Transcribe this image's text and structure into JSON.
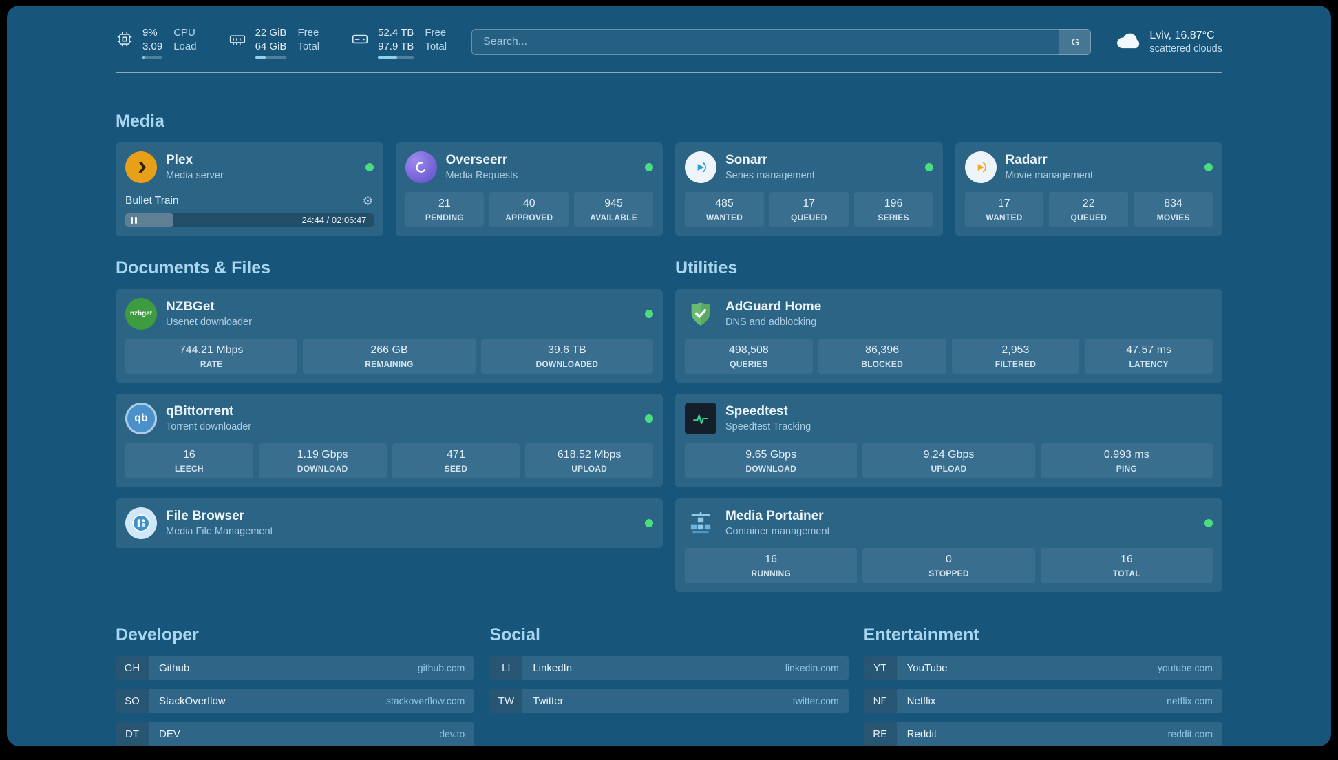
{
  "colors": {
    "page_background": "#18557B",
    "section_heading": "#A9D6EF",
    "status_online": "#4ADE80",
    "bookmark_domain": "#8FC6E6",
    "plex_brand": "#E8A018",
    "overseerr_brand": "#5F4BC8",
    "sonarr_brand": "#2E9BD6",
    "radarr_brand": "#F5A623",
    "nzbget_brand": "#3D9C40",
    "qbittorrent_brand": "#4A90C9",
    "adguard_brand": "#68BC71",
    "speedtest_brand": "#34D399",
    "portainer_brand": "#7FC3E8"
  },
  "header": {
    "cpu": {
      "icon": "cpu-icon",
      "value": "9%",
      "value2": "3.09",
      "label": "CPU",
      "label2": "Load",
      "bar_percent": 9
    },
    "memory": {
      "icon": "memory-icon",
      "value": "22 GiB",
      "value2": "64 GiB",
      "label": "Free",
      "label2": "Total",
      "bar_percent": 34
    },
    "disk": {
      "icon": "disk-icon",
      "value": "52.4 TB",
      "value2": "97.9 TB",
      "label": "Free",
      "label2": "Total",
      "bar_percent": 54
    },
    "search": {
      "placeholder": "Search...",
      "button_label": "G"
    },
    "weather": {
      "icon": "cloud-icon",
      "location": "Lviv, 16.87°C",
      "condition": "scattered clouds"
    }
  },
  "media": {
    "title": "Media",
    "plex": {
      "name": "Plex",
      "subtitle": "Media server",
      "icon": "plex-icon",
      "online": true,
      "now_playing": {
        "title": "Bullet Train",
        "time_display": "24:44 / 02:06:47",
        "progress_percent": 19.5
      },
      "gear_glyph": "⚙"
    },
    "overseerr": {
      "name": "Overseerr",
      "subtitle": "Media Requests",
      "icon": "overseerr-icon",
      "online": true,
      "stats": [
        {
          "value": "21",
          "label": "PENDING"
        },
        {
          "value": "40",
          "label": "APPROVED"
        },
        {
          "value": "945",
          "label": "AVAILABLE"
        }
      ]
    },
    "sonarr": {
      "name": "Sonarr",
      "subtitle": "Series management",
      "icon": "sonarr-icon",
      "online": true,
      "stats": [
        {
          "value": "485",
          "label": "WANTED"
        },
        {
          "value": "17",
          "label": "QUEUED"
        },
        {
          "value": "196",
          "label": "SERIES"
        }
      ]
    },
    "radarr": {
      "name": "Radarr",
      "subtitle": "Movie management",
      "icon": "radarr-icon",
      "online": true,
      "stats": [
        {
          "value": "17",
          "label": "WANTED"
        },
        {
          "value": "22",
          "label": "QUEUED"
        },
        {
          "value": "834",
          "label": "MOVIES"
        }
      ]
    }
  },
  "documents": {
    "title": "Documents & Files",
    "nzbget": {
      "name": "NZBGet",
      "subtitle": "Usenet downloader",
      "icon": "nzbget-icon",
      "icon_text": "nzbget",
      "online": true,
      "stats": [
        {
          "value": "744.21 Mbps",
          "label": "RATE"
        },
        {
          "value": "266 GB",
          "label": "REMAINING"
        },
        {
          "value": "39.6 TB",
          "label": "DOWNLOADED"
        }
      ]
    },
    "qbittorrent": {
      "name": "qBittorrent",
      "subtitle": "Torrent downloader",
      "icon": "qbittorrent-icon",
      "icon_text": "qb",
      "online": true,
      "stats": [
        {
          "value": "16",
          "label": "LEECH"
        },
        {
          "value": "1.19 Gbps",
          "label": "DOWNLOAD"
        },
        {
          "value": "471",
          "label": "SEED"
        },
        {
          "value": "618.52 Mbps",
          "label": "UPLOAD"
        }
      ]
    },
    "filebrowser": {
      "name": "File Browser",
      "subtitle": "Media File Management",
      "icon": "filebrowser-icon",
      "online": true
    }
  },
  "utilities": {
    "title": "Utilities",
    "adguard": {
      "name": "AdGuard Home",
      "subtitle": "DNS and adblocking",
      "icon": "adguard-shield-icon",
      "stats": [
        {
          "value": "498,508",
          "label": "QUERIES"
        },
        {
          "value": "86,396",
          "label": "BLOCKED"
        },
        {
          "value": "2,953",
          "label": "FILTERED"
        },
        {
          "value": "47.57 ms",
          "label": "LATENCY"
        }
      ]
    },
    "speedtest": {
      "name": "Speedtest",
      "subtitle": "Speedtest Tracking",
      "icon": "speedtest-pulse-icon",
      "stats": [
        {
          "value": "9.65 Gbps",
          "label": "DOWNLOAD"
        },
        {
          "value": "9.24 Gbps",
          "label": "UPLOAD"
        },
        {
          "value": "0.993 ms",
          "label": "PING"
        }
      ]
    },
    "portainer": {
      "name": "Media Portainer",
      "subtitle": "Container management",
      "icon": "portainer-crane-icon",
      "online": true,
      "stats": [
        {
          "value": "16",
          "label": "RUNNING"
        },
        {
          "value": "0",
          "label": "STOPPED"
        },
        {
          "value": "16",
          "label": "TOTAL"
        }
      ]
    }
  },
  "bookmarks": {
    "groups": [
      {
        "title": "Developer",
        "items": [
          {
            "abbr": "GH",
            "name": "Github",
            "domain": "github.com"
          },
          {
            "abbr": "SO",
            "name": "StackOverflow",
            "domain": "stackoverflow.com"
          },
          {
            "abbr": "DT",
            "name": "DEV",
            "domain": "dev.to"
          }
        ]
      },
      {
        "title": "Social",
        "items": [
          {
            "abbr": "LI",
            "name": "LinkedIn",
            "domain": "linkedin.com"
          },
          {
            "abbr": "TW",
            "name": "Twitter",
            "domain": "twitter.com"
          }
        ]
      },
      {
        "title": "Entertainment",
        "items": [
          {
            "abbr": "YT",
            "name": "YouTube",
            "domain": "youtube.com"
          },
          {
            "abbr": "NF",
            "name": "Netflix",
            "domain": "netflix.com"
          },
          {
            "abbr": "RE",
            "name": "Reddit",
            "domain": "reddit.com"
          }
        ]
      }
    ]
  }
}
